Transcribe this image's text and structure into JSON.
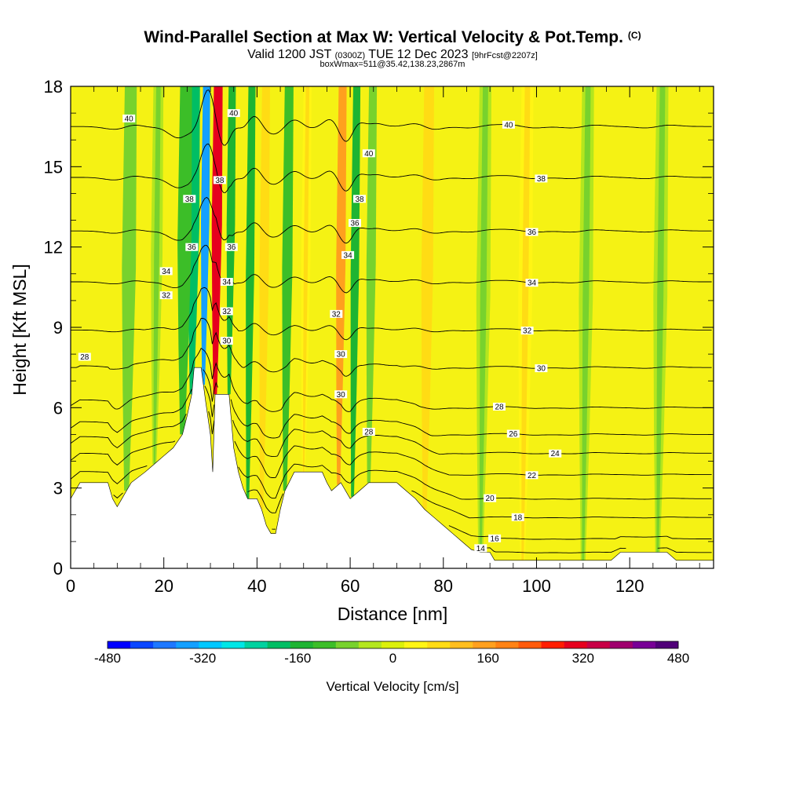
{
  "header": {
    "title": "Wind-Parallel Section at Max W: Vertical Velocity & Pot.Temp.",
    "copyright": "(C)",
    "subtitle_main": "Valid 1200 JST",
    "subtitle_utc": "(0300Z)",
    "subtitle_date": "TUE 12 Dec 2023",
    "subtitle_fcst": "[9hrFcst@2207z]",
    "box_info": "boxWmax=511@35.42,138.23,2867m"
  },
  "colors": {
    "background_field": "#f5f214",
    "palette": [
      "#0000ff",
      "#0a46ff",
      "#1e78ff",
      "#14a0ff",
      "#00c8ff",
      "#00e6e6",
      "#00d2a0",
      "#00be64",
      "#1eb432",
      "#3cbe28",
      "#78d22d",
      "#b4e61e",
      "#dcf00a",
      "#fff514",
      "#ffdc14",
      "#ffbe1e",
      "#ffa01e",
      "#ff8214",
      "#ff5a0a",
      "#ff1e00",
      "#e6001e",
      "#c80046",
      "#a0006e",
      "#780096",
      "#500078"
    ]
  },
  "chart_data": {
    "type": "heatmap",
    "xlabel": "Distance [nm]",
    "ylabel": "Height [Kft MSL]",
    "xlim": [
      0,
      138
    ],
    "ylim": [
      0,
      18
    ],
    "x_ticks": [
      "0",
      "20",
      "40",
      "60",
      "80",
      "100",
      "120"
    ],
    "x_tick_values": [
      0,
      20,
      40,
      60,
      80,
      100,
      120
    ],
    "y_ticks": [
      "0",
      "3",
      "6",
      "9",
      "12",
      "15",
      "18"
    ],
    "y_tick_values": [
      0,
      3,
      6,
      9,
      12,
      15,
      18
    ],
    "colorbar": {
      "label": "Vertical Velocity [cm/s]",
      "min": -480,
      "max": 480,
      "tick_labels": [
        "-480",
        "-320",
        "-160",
        "0",
        "160",
        "320",
        "480"
      ],
      "tick_values": [
        -480,
        -320,
        -160,
        0,
        160,
        320,
        480
      ]
    },
    "terrain": [
      [
        0,
        2.6
      ],
      [
        1,
        2.9
      ],
      [
        2,
        3.2
      ],
      [
        8,
        3.2
      ],
      [
        9,
        2.6
      ],
      [
        10,
        2.3
      ],
      [
        11,
        2.6
      ],
      [
        12,
        2.9
      ],
      [
        13,
        3.2
      ],
      [
        16,
        3.6
      ],
      [
        18,
        3.9
      ],
      [
        20,
        4.2
      ],
      [
        22,
        4.5
      ],
      [
        24,
        5.0
      ],
      [
        25,
        5.7
      ],
      [
        26,
        6.5
      ],
      [
        26.5,
        7.5
      ],
      [
        28,
        7.5
      ],
      [
        29,
        6.2
      ],
      [
        30,
        5.0
      ],
      [
        30.5,
        3.6
      ],
      [
        31,
        6.5
      ],
      [
        34,
        6.5
      ],
      [
        35,
        4.5
      ],
      [
        36,
        3.6
      ],
      [
        37,
        3.0
      ],
      [
        38,
        2.6
      ],
      [
        40,
        2.6
      ],
      [
        41,
        2.2
      ],
      [
        42,
        1.6
      ],
      [
        43,
        1.3
      ],
      [
        44,
        1.3
      ],
      [
        45,
        2.2
      ],
      [
        46,
        2.9
      ],
      [
        48,
        3.6
      ],
      [
        54,
        3.6
      ],
      [
        55,
        3.2
      ],
      [
        56,
        2.9
      ],
      [
        58,
        3.2
      ],
      [
        60,
        2.6
      ],
      [
        62,
        2.9
      ],
      [
        64,
        3.2
      ],
      [
        70,
        3.2
      ],
      [
        72,
        2.9
      ],
      [
        74,
        2.6
      ],
      [
        76,
        2.2
      ],
      [
        78,
        1.9
      ],
      [
        80,
        1.6
      ],
      [
        82,
        1.3
      ],
      [
        84,
        1.0
      ],
      [
        86,
        0.7
      ],
      [
        88,
        0.6
      ],
      [
        90,
        0.6
      ],
      [
        91,
        0.3
      ],
      [
        100,
        0.3
      ],
      [
        116,
        0.3
      ],
      [
        118,
        0.6
      ],
      [
        128,
        0.6
      ],
      [
        130,
        0.3
      ],
      [
        138,
        0.3
      ]
    ],
    "w_features": [
      {
        "x": 31.0,
        "w": 2.2,
        "value": 320
      },
      {
        "x": 28.5,
        "w": 1.8,
        "value": -360
      },
      {
        "x": 26.0,
        "w": 2.5,
        "value": -200
      },
      {
        "x": 24.0,
        "w": 3.0,
        "value": -120
      },
      {
        "x": 34.0,
        "w": 1.8,
        "value": -160
      },
      {
        "x": 38.0,
        "w": 1.8,
        "value": -140
      },
      {
        "x": 41.0,
        "w": 2.0,
        "value": 80
      },
      {
        "x": 46.0,
        "w": 2.2,
        "value": -100
      },
      {
        "x": 50.0,
        "w": 2.0,
        "value": 40
      },
      {
        "x": 57.5,
        "w": 2.0,
        "value": 160
      },
      {
        "x": 60.5,
        "w": 1.8,
        "value": -160
      },
      {
        "x": 64.0,
        "w": 2.0,
        "value": -60
      },
      {
        "x": 12.0,
        "w": 3.0,
        "value": -60
      },
      {
        "x": 18.0,
        "w": 2.5,
        "value": -40
      },
      {
        "x": 76.0,
        "w": 2.5,
        "value": 60
      },
      {
        "x": 88.0,
        "w": 3.0,
        "value": -30
      },
      {
        "x": 97.0,
        "w": 3.0,
        "value": 30
      },
      {
        "x": 110.0,
        "w": 3.0,
        "value": -30
      },
      {
        "x": 126.0,
        "w": 3.0,
        "value": -30
      }
    ],
    "theta_contours": [
      {
        "label": "14",
        "label_x": 88,
        "height_far": 0.55
      },
      {
        "label": "16",
        "label_x": 91,
        "height_far": 1.1
      },
      {
        "label": "18",
        "label_x": 96,
        "height_far": 1.9
      },
      {
        "label": "20",
        "label_x": 90,
        "height_far": 2.6
      },
      {
        "label": "22",
        "label_x": 99,
        "height_far": 3.5
      },
      {
        "label": "24",
        "label_x": 104,
        "height_far": 4.3
      },
      {
        "label": "26",
        "label_x": 95,
        "height_far": 5.0
      },
      {
        "label": "28",
        "label_x": 92,
        "height_far": 6.0
      },
      {
        "label": "30",
        "label_x": 101,
        "height_far": 7.5
      },
      {
        "label": "32",
        "label_x": 98,
        "height_far": 8.9
      },
      {
        "label": "34",
        "label_x": 99,
        "height_far": 10.7
      },
      {
        "label": "36",
        "label_x": 99,
        "height_far": 12.6
      },
      {
        "label": "38",
        "label_x": 101,
        "height_far": 14.6
      },
      {
        "label": "40",
        "label_x": 94,
        "height_far": 16.5
      }
    ],
    "extra_theta_labels": [
      {
        "label": "28",
        "x": 3,
        "y": 7.9
      },
      {
        "label": "32",
        "x": 20.5,
        "y": 10.2
      },
      {
        "label": "34",
        "x": 20.5,
        "y": 11.1
      },
      {
        "label": "36",
        "x": 26,
        "y": 12.0
      },
      {
        "label": "38",
        "x": 25.5,
        "y": 13.8
      },
      {
        "label": "40",
        "x": 12.5,
        "y": 16.8
      },
      {
        "label": "38",
        "x": 32,
        "y": 14.5
      },
      {
        "label": "40",
        "x": 35,
        "y": 17.0
      },
      {
        "label": "36",
        "x": 34.5,
        "y": 12.0
      },
      {
        "label": "34",
        "x": 33.5,
        "y": 10.7
      },
      {
        "label": "32",
        "x": 33.5,
        "y": 9.6
      },
      {
        "label": "30",
        "x": 33.5,
        "y": 8.5
      },
      {
        "label": "40",
        "x": 64,
        "y": 15.5
      },
      {
        "label": "38",
        "x": 62,
        "y": 13.8
      },
      {
        "label": "36",
        "x": 61,
        "y": 12.9
      },
      {
        "label": "34",
        "x": 59.5,
        "y": 11.7
      },
      {
        "label": "32",
        "x": 57,
        "y": 9.5
      },
      {
        "label": "30",
        "x": 58,
        "y": 8.0
      },
      {
        "label": "30",
        "x": 58,
        "y": 6.5
      },
      {
        "label": "28",
        "x": 64,
        "y": 5.1
      }
    ]
  }
}
